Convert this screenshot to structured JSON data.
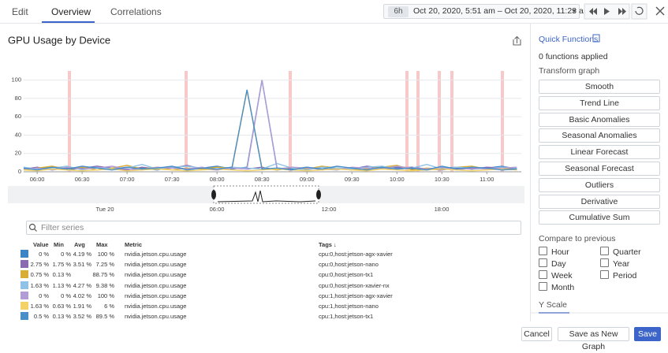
{
  "tabs": [
    "Edit",
    "Overview",
    "Correlations"
  ],
  "time_range": {
    "preset": "6h",
    "label": "Oct 20, 2020, 5:51 am – Oct 20, 2020, 11:23 am"
  },
  "chart_data": {
    "type": "line",
    "title": "GPU Usage by Device",
    "x": [
      "05:51",
      "06:00",
      "06:10",
      "06:20",
      "06:30",
      "06:40",
      "06:50",
      "07:00",
      "07:10",
      "07:20",
      "07:30",
      "07:40",
      "07:50",
      "08:00",
      "08:10",
      "08:20",
      "08:30",
      "08:40",
      "08:50",
      "09:00",
      "09:10",
      "09:20",
      "09:30",
      "09:40",
      "09:50",
      "10:00",
      "10:10",
      "10:20",
      "10:30",
      "10:40",
      "10:50",
      "11:00",
      "11:10",
      "11:20"
    ],
    "xlim": [
      "05:51",
      "11:23"
    ],
    "xticks": [
      "06:00",
      "06:30",
      "07:00",
      "07:30",
      "08:00",
      "08:30",
      "09:00",
      "09:30",
      "10:00",
      "10:30",
      "11:00"
    ],
    "ylim": [
      0,
      110
    ],
    "yticks": [
      0,
      20,
      40,
      60,
      80,
      100
    ],
    "grid": true,
    "series": [
      {
        "color": "#3d84c6",
        "values": [
          4,
          3,
          5,
          2,
          4,
          6,
          3,
          5,
          4,
          2,
          5,
          3,
          4,
          6,
          3,
          5,
          100,
          4,
          3,
          5,
          2,
          4,
          3,
          6,
          4,
          5,
          3,
          2,
          4,
          5,
          3,
          4,
          6,
          3
        ]
      },
      {
        "color": "#8a6bb2",
        "values": [
          3,
          5,
          2,
          4,
          3,
          6,
          4,
          2,
          5,
          3,
          4,
          7,
          3,
          2,
          4,
          3,
          5,
          2,
          4,
          3,
          5,
          4,
          2,
          6,
          3,
          4,
          5,
          3,
          2,
          4,
          3,
          5,
          4,
          3
        ]
      },
      {
        "color": "#d9ad35",
        "values": [
          2,
          4,
          6,
          3,
          5,
          2,
          4,
          7,
          3,
          5,
          2,
          4,
          3,
          5,
          4,
          88.75,
          4,
          2,
          5,
          3,
          6,
          4,
          2,
          3,
          5,
          7,
          2,
          4,
          3,
          5,
          6,
          3,
          4,
          2
        ]
      },
      {
        "color": "#8fc2e6",
        "values": [
          5,
          3,
          4,
          6,
          2,
          5,
          3,
          4,
          8,
          3,
          5,
          6,
          4,
          3,
          5,
          4,
          3,
          9,
          4,
          2,
          5,
          4,
          3,
          5,
          6,
          3,
          4,
          8,
          3,
          5,
          4,
          3,
          5,
          4
        ]
      },
      {
        "color": "#b19cd6",
        "values": [
          3,
          4,
          2,
          5,
          3,
          4,
          6,
          3,
          2,
          5,
          4,
          3,
          5,
          2,
          4,
          3,
          100,
          3,
          5,
          4,
          3,
          2,
          5,
          4,
          3,
          6,
          4,
          3,
          5,
          2,
          4,
          3,
          4,
          5
        ]
      },
      {
        "color": "#f3d368",
        "values": [
          2,
          1,
          3,
          2,
          1,
          2,
          3,
          1,
          2,
          3,
          2,
          1,
          2,
          3,
          2,
          1,
          2,
          3,
          2,
          1,
          2,
          3,
          2,
          1,
          3,
          2,
          1,
          2,
          3,
          2,
          1,
          2,
          3,
          2
        ]
      },
      {
        "color": "#4a8fc7",
        "values": [
          4,
          2,
          5,
          3,
          6,
          4,
          2,
          5,
          3,
          4,
          6,
          2,
          4,
          3,
          5,
          89.5,
          3,
          4,
          2,
          5,
          3,
          6,
          4,
          2,
          5,
          3,
          4,
          2,
          6,
          3,
          5,
          4,
          2,
          3
        ]
      }
    ]
  },
  "navigator": {
    "labels": [
      "Tue 20",
      "06:00",
      "12:00",
      "18:00"
    ]
  },
  "filter": {
    "placeholder": "Filter series"
  },
  "table": {
    "columns": {
      "value": "Value",
      "min": "Min",
      "avg": "Avg",
      "max": "Max",
      "metric": "Metric",
      "tags": "Tags ↓"
    },
    "rows": [
      {
        "color": "#3d84c6",
        "value": "0 %",
        "min": "0 %",
        "avg": "4.19 %",
        "max": "100 %",
        "metric": "nvidia.jetson.cpu.usage",
        "tags": "cpu:0,host:jetson-agx-xavier"
      },
      {
        "color": "#8a6bb2",
        "value": "2.75 %",
        "min": "1.75 %",
        "avg": "3.51 %",
        "max": "7.25 %",
        "metric": "nvidia.jetson.cpu.usage",
        "tags": "cpu:0,host:jetson-nano"
      },
      {
        "color": "#d9ad35",
        "value": "0.75 %",
        "min": "0.13 %",
        "max": "88.75 %",
        "metric": "nvidia.jetson.cpu.usage",
        "tags": "cpu:0,host:jetson-tx1"
      },
      {
        "color": "#8fc2e6",
        "value": "1.63 %",
        "min": "1.13 %",
        "avg": "4.27 %",
        "max": "9.38 %",
        "metric": "nvidia.jetson.cpu.usage",
        "tags": "cpu:0,host:jetson-xavier-nx"
      },
      {
        "color": "#b19cd6",
        "value": "0 %",
        "min": "0 %",
        "avg": "4.02 %",
        "max": "100 %",
        "metric": "nvidia.jetson.cpu.usage",
        "tags": "cpu:1,host:jetson-agx-xavier"
      },
      {
        "color": "#f3d368",
        "value": "1.63 %",
        "min": "0.63 %",
        "avg": "1.91 %",
        "max": "6 %",
        "metric": "nvidia.jetson.cpu.usage",
        "tags": "cpu:1,host:jetson-nano"
      },
      {
        "color": "#4a8fc7",
        "value": "0.5 %",
        "min": "0.13 %",
        "avg": "3.52 %",
        "max": "89.5 %",
        "metric": "nvidia.jetson.cpu.usage",
        "tags": "cpu:1,host:jetson-tx1"
      }
    ]
  },
  "sidebar": {
    "title": "Quick Functions",
    "status": "0 functions applied",
    "transform_heading": "Transform graph",
    "functions": [
      "Smooth",
      "Trend Line",
      "Basic Anomalies",
      "Seasonal Anomalies",
      "Linear Forecast",
      "Seasonal Forecast",
      "Outliers",
      "Derivative",
      "Cumulative Sum"
    ],
    "compare_heading": "Compare to previous",
    "compare_options": [
      "Hour",
      "Quarter",
      "Day",
      "Year",
      "Week",
      "Period",
      "Month"
    ],
    "y_scale": "Y Scale"
  },
  "footer": {
    "cancel": "Cancel",
    "save_new": "Save as New Graph",
    "save": "Save"
  }
}
